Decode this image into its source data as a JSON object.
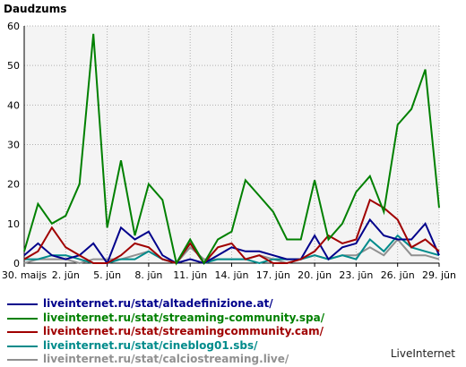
{
  "chart_data": {
    "type": "line",
    "ylabel": "Daudzums",
    "ylim": [
      0,
      60
    ],
    "yticks": [
      0,
      10,
      20,
      30,
      40,
      50,
      60
    ],
    "grid": true,
    "legend_position": "bottom",
    "x": [
      "30.05",
      "31.05",
      "01.06",
      "02.06",
      "03.06",
      "04.06",
      "05.06",
      "06.06",
      "07.06",
      "08.06",
      "09.06",
      "10.06",
      "11.06",
      "12.06",
      "13.06",
      "14.06",
      "15.06",
      "16.06",
      "17.06",
      "18.06",
      "19.06",
      "20.06",
      "21.06",
      "22.06",
      "23.06",
      "24.06",
      "25.06",
      "26.06",
      "27.06",
      "28.06",
      "29.06"
    ],
    "xtick_labels": [
      {
        "index": 0,
        "label": "30. maijs"
      },
      {
        "index": 3,
        "label": "2. jūn"
      },
      {
        "index": 6,
        "label": "5. jūn"
      },
      {
        "index": 9,
        "label": "8. jūn"
      },
      {
        "index": 12,
        "label": "11. jūn"
      },
      {
        "index": 15,
        "label": "14. jūn"
      },
      {
        "index": 18,
        "label": "17. jūn"
      },
      {
        "index": 21,
        "label": "20. jūn"
      },
      {
        "index": 24,
        "label": "23. jūn"
      },
      {
        "index": 27,
        "label": "26. jūn"
      },
      {
        "index": 30,
        "label": "29. jūn"
      }
    ],
    "series": [
      {
        "name": "liveinternet.ru/stat/altadefinizione.at/",
        "color": "#00008b",
        "values": [
          2,
          5,
          2,
          1,
          2,
          5,
          0,
          9,
          6,
          8,
          2,
          0,
          1,
          0,
          2,
          4,
          3,
          3,
          2,
          1,
          1,
          7,
          1,
          4,
          5,
          11,
          7,
          6,
          6,
          10,
          2
        ]
      },
      {
        "name": "liveinternet.ru/stat/streaming-community.spa/",
        "color": "#008000",
        "values": [
          3,
          15,
          10,
          12,
          20,
          58,
          9,
          26,
          7,
          20,
          16,
          0,
          6,
          0,
          6,
          8,
          21,
          17,
          13,
          6,
          6,
          21,
          6,
          10,
          18,
          22,
          13,
          35,
          39,
          49,
          14
        ]
      },
      {
        "name": "liveinternet.ru/stat/streamingcommunity.cam/",
        "color": "#a00000",
        "values": [
          1,
          3,
          9,
          4,
          2,
          0,
          0,
          2,
          5,
          4,
          1,
          0,
          5,
          0,
          4,
          5,
          1,
          2,
          0,
          0,
          1,
          3,
          7,
          5,
          6,
          16,
          14,
          11,
          4,
          6,
          3
        ]
      },
      {
        "name": "liveinternet.ru/stat/cineblog01.sbs/",
        "color": "#008b8b",
        "values": [
          1,
          1,
          2,
          2,
          1,
          0,
          0,
          1,
          1,
          3,
          1,
          0,
          5,
          0,
          1,
          1,
          1,
          0,
          1,
          1,
          1,
          2,
          1,
          2,
          1,
          6,
          3,
          7,
          4,
          3,
          2
        ]
      },
      {
        "name": "liveinternet.ru/stat/calciostreaming.live/",
        "color": "#909090",
        "values": [
          0,
          1,
          1,
          1,
          0,
          1,
          1,
          1,
          2,
          3,
          1,
          0,
          4,
          1,
          1,
          1,
          1,
          2,
          1,
          0,
          1,
          2,
          1,
          2,
          2,
          4,
          2,
          6,
          2,
          2,
          1
        ]
      }
    ]
  },
  "credit": "LiveInternet"
}
